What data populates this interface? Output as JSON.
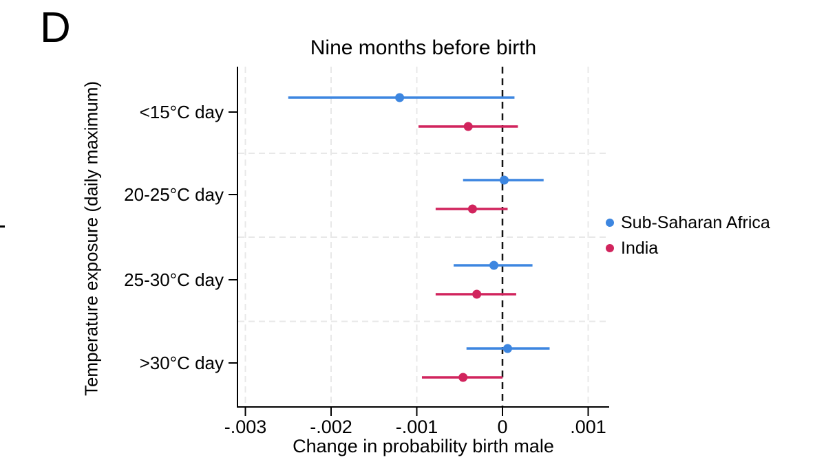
{
  "panel_label": "D",
  "chart_data": {
    "type": "scatter",
    "subtype": "coefficient-plot-with-ci",
    "title": "Nine months before birth",
    "xlabel": "Change in probability birth male",
    "ylabel": "Temperature exposure (daily maximum)",
    "categories": [
      "<15°C day",
      "20-25°C day",
      "25-30°C day",
      ">30°C day"
    ],
    "x_ticks": [
      -0.003,
      -0.002,
      -0.001,
      0,
      0.001
    ],
    "x_tick_labels": [
      "-.003",
      "-.002",
      "-.001",
      "0",
      ".001"
    ],
    "xlim": [
      -0.0031,
      0.00125
    ],
    "grid": "light dashed vertical gridlines at ticks, light dashed horizontal separators between categories",
    "zero_line": {
      "value": 0,
      "style": "black dashed vertical"
    },
    "legend_position": "right-middle",
    "series": [
      {
        "name": "Sub-Saharan Africa",
        "color": "#3d86e0",
        "points": [
          {
            "category": "<15°C day",
            "estimate": -0.0012,
            "ci_low": -0.0025,
            "ci_high": 0.00014
          },
          {
            "category": "20-25°C day",
            "estimate": 2e-05,
            "ci_low": -0.00046,
            "ci_high": 0.00048
          },
          {
            "category": "25-30°C day",
            "estimate": -0.0001,
            "ci_low": -0.00057,
            "ci_high": 0.00035
          },
          {
            "category": ">30°C day",
            "estimate": 6e-05,
            "ci_low": -0.00042,
            "ci_high": 0.00055
          }
        ]
      },
      {
        "name": "India",
        "color": "#d1245d",
        "points": [
          {
            "category": "<15°C day",
            "estimate": -0.0004,
            "ci_low": -0.00098,
            "ci_high": 0.00018
          },
          {
            "category": "20-25°C day",
            "estimate": -0.00035,
            "ci_low": -0.00078,
            "ci_high": 6e-05
          },
          {
            "category": "25-30°C day",
            "estimate": -0.0003,
            "ci_low": -0.00078,
            "ci_high": 0.00016
          },
          {
            "category": ">30°C day",
            "estimate": -0.00046,
            "ci_low": -0.00094,
            "ci_high": 0.0
          }
        ]
      }
    ]
  }
}
